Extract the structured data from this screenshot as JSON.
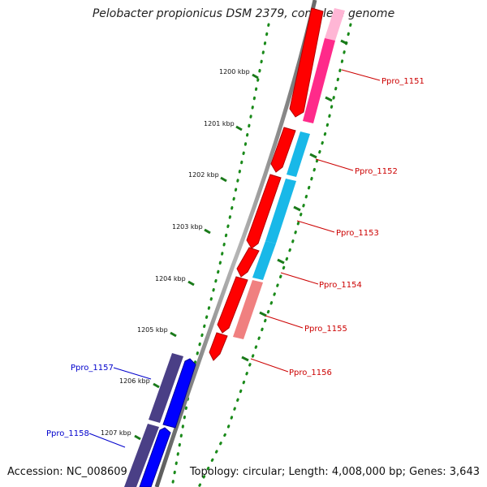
{
  "title": "Pelobacter propionicus DSM 2379, complete genome",
  "footer": {
    "accession_label": "Accession:",
    "accession": "NC_008609",
    "topology_label": "Topology:",
    "topology": "circular",
    "length_label": "Length:",
    "length": "4,008,000 bp",
    "genes_label": "Genes:",
    "genes": "3,643"
  },
  "ticks": [
    "1200 kbp",
    "1201 kbp",
    "1202 kbp",
    "1203 kbp",
    "1204 kbp",
    "1205 kbp",
    "1206 kbp",
    "1207 kbp"
  ],
  "genes": [
    {
      "label": "Ppro_1151",
      "strand": "reverse",
      "color": "#ff2a8a",
      "label_color": "#cc0000"
    },
    {
      "label": "Ppro_1152",
      "strand": "reverse",
      "color": "#19b8e8",
      "label_color": "#cc0000"
    },
    {
      "label": "Ppro_1153",
      "strand": "reverse",
      "color": "#19b8e8",
      "label_color": "#cc0000"
    },
    {
      "label": "Ppro_1154",
      "strand": "reverse",
      "color": "#19b8e8",
      "label_color": "#cc0000"
    },
    {
      "label": "Ppro_1155",
      "strand": "reverse",
      "color": "#f08080",
      "label_color": "#cc0000"
    },
    {
      "label": "Ppro_1156",
      "strand": "reverse",
      "color": "#ff0000",
      "label_color": "#cc0000"
    },
    {
      "label": "Ppro_1157",
      "strand": "forward",
      "color": "#4a3f86",
      "label_color": "#0000cc"
    },
    {
      "label": "Ppro_1158",
      "strand": "forward",
      "color": "#4a3f86",
      "label_color": "#0000cc"
    }
  ],
  "colors": {
    "backbone": "#8a8a8a",
    "reverse_cds": "#ff0000",
    "forward_cds": "#0000ff",
    "tick_mark": "#1a7a1a",
    "gc_dots": "#1a8a1a"
  }
}
